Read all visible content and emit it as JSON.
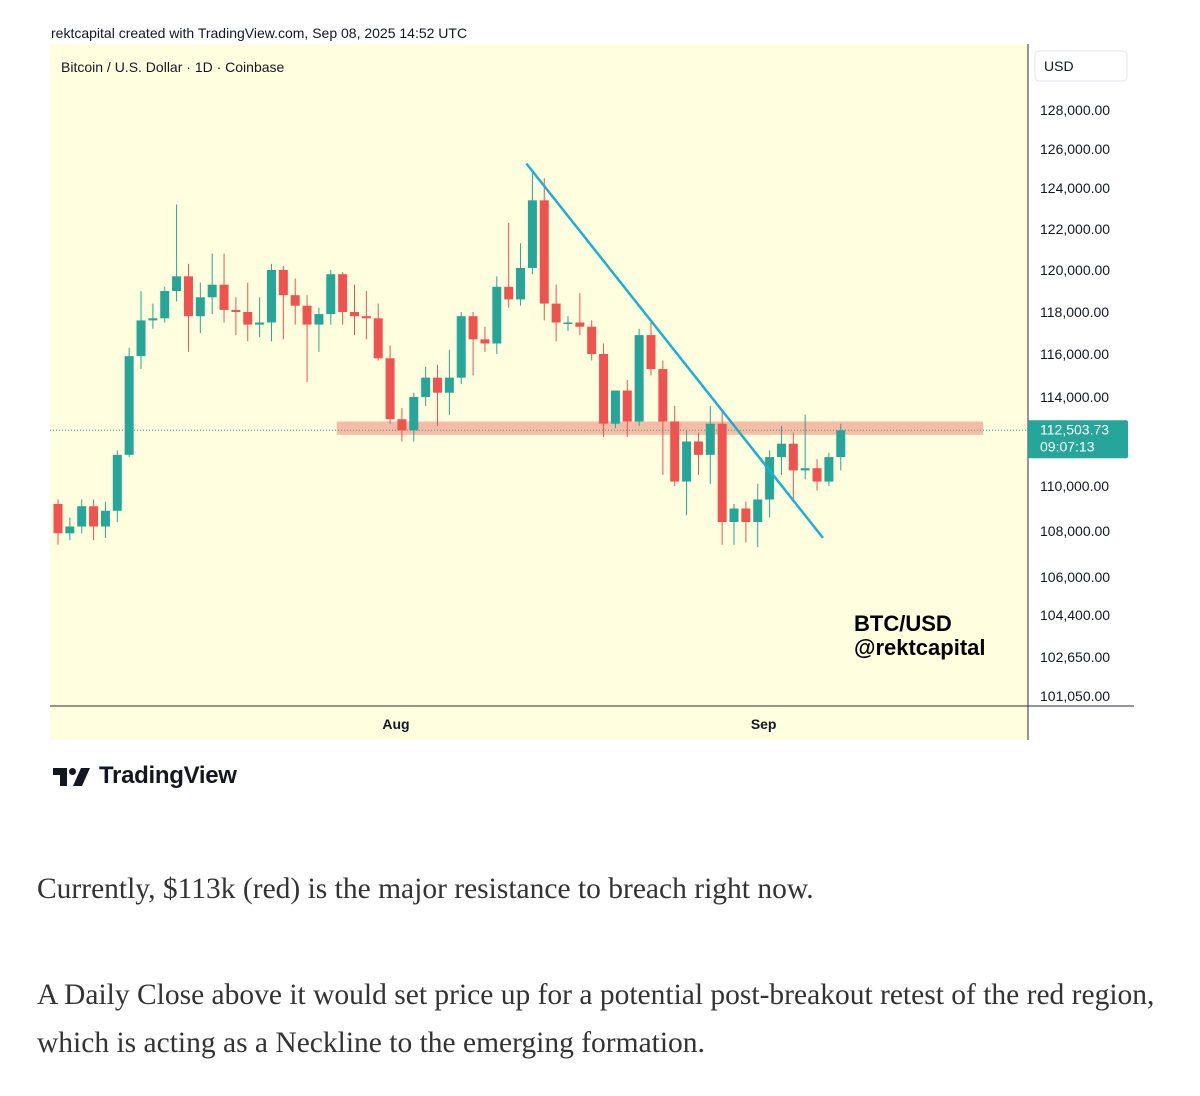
{
  "header": {
    "credit": "rektcapital created with TradingView.com, Sep 08, 2025 14:52 UTC"
  },
  "footer": {
    "brand": "TradingView"
  },
  "article": {
    "paragraph1": "Currently, $113k (red) is the major resistance to breach right now.",
    "paragraph2": "A Daily Close above it would set price up for a potential post-breakout retest of the red region, which is acting as a Neckline to the emerging formation."
  },
  "chart_data": {
    "type": "candlestick",
    "symbol_title": "Bitcoin / U.S. Dollar · 1D · Coinbase",
    "currency": "USD",
    "watermark": [
      "BTC/USD",
      "@rektcapital"
    ],
    "last_price": "112,503.73",
    "countdown": "09:07:13",
    "y_axis_labels": [
      {
        "value": 128000,
        "label": "128,000.00"
      },
      {
        "value": 126000,
        "label": "126,000.00"
      },
      {
        "value": 124000,
        "label": "124,000.00"
      },
      {
        "value": 122000,
        "label": "122,000.00"
      },
      {
        "value": 120000,
        "label": "120,000.00"
      },
      {
        "value": 118000,
        "label": "118,000.00"
      },
      {
        "value": 116000,
        "label": "116,000.00"
      },
      {
        "value": 114000,
        "label": "114,000.00"
      },
      {
        "value": 110000,
        "label": "110,000.00"
      },
      {
        "value": 108000,
        "label": "108,000.00"
      },
      {
        "value": 106000,
        "label": "106,000.00"
      },
      {
        "value": 104400,
        "label": "104,400.00"
      },
      {
        "value": 102650,
        "label": "102,650.00"
      },
      {
        "value": 101050,
        "label": "101,050.00"
      }
    ],
    "x_axis_labels": [
      {
        "label": "Aug",
        "index": 28.5
      },
      {
        "label": "Sep",
        "index": 59.5
      }
    ],
    "resistance_zone": {
      "low": 112300,
      "high": 112900,
      "from_index": 23.5,
      "to_index": 78,
      "color": "#f5b5a0"
    },
    "trendline": {
      "from": {
        "index": 39.5,
        "price": 125250
      },
      "to": {
        "index": 64.5,
        "price": 107700
      },
      "color": "#1ab0d4"
    },
    "colors": {
      "up": "#26a69a",
      "down": "#ef5350",
      "background": "#ffffe0"
    },
    "candles": [
      {
        "o": 109200,
        "h": 109400,
        "l": 107400,
        "c": 107900
      },
      {
        "o": 107900,
        "h": 108600,
        "l": 107600,
        "c": 108200
      },
      {
        "o": 108200,
        "h": 109400,
        "l": 107900,
        "c": 109100
      },
      {
        "o": 109100,
        "h": 109400,
        "l": 107600,
        "c": 108200
      },
      {
        "o": 108200,
        "h": 109300,
        "l": 107700,
        "c": 108900
      },
      {
        "o": 108900,
        "h": 111600,
        "l": 108400,
        "c": 111400
      },
      {
        "o": 111400,
        "h": 116300,
        "l": 111300,
        "c": 115900
      },
      {
        "o": 115900,
        "h": 119000,
        "l": 115300,
        "c": 117600
      },
      {
        "o": 117600,
        "h": 118400,
        "l": 117200,
        "c": 117700
      },
      {
        "o": 117700,
        "h": 119200,
        "l": 117500,
        "c": 119000
      },
      {
        "o": 119000,
        "h": 123200,
        "l": 118500,
        "c": 119700
      },
      {
        "o": 119700,
        "h": 120300,
        "l": 116100,
        "c": 117800
      },
      {
        "o": 117800,
        "h": 119400,
        "l": 117000,
        "c": 118700
      },
      {
        "o": 118700,
        "h": 120800,
        "l": 117900,
        "c": 119300
      },
      {
        "o": 119300,
        "h": 120800,
        "l": 117500,
        "c": 118100
      },
      {
        "o": 118100,
        "h": 118700,
        "l": 116900,
        "c": 118000
      },
      {
        "o": 118000,
        "h": 119400,
        "l": 116600,
        "c": 117400
      },
      {
        "o": 117400,
        "h": 118700,
        "l": 116800,
        "c": 117500
      },
      {
        "o": 117500,
        "h": 120300,
        "l": 116600,
        "c": 120000
      },
      {
        "o": 120000,
        "h": 120200,
        "l": 116700,
        "c": 118800
      },
      {
        "o": 118800,
        "h": 119600,
        "l": 117400,
        "c": 118300
      },
      {
        "o": 118300,
        "h": 118800,
        "l": 114700,
        "c": 117400
      },
      {
        "o": 117400,
        "h": 118200,
        "l": 116100,
        "c": 117900
      },
      {
        "o": 117900,
        "h": 120000,
        "l": 117400,
        "c": 119800
      },
      {
        "o": 119800,
        "h": 119900,
        "l": 117400,
        "c": 118000
      },
      {
        "o": 118000,
        "h": 119300,
        "l": 116900,
        "c": 117800
      },
      {
        "o": 117800,
        "h": 119000,
        "l": 116700,
        "c": 117700
      },
      {
        "o": 117700,
        "h": 118400,
        "l": 115700,
        "c": 115800
      },
      {
        "o": 115800,
        "h": 116400,
        "l": 112800,
        "c": 113000
      },
      {
        "o": 113000,
        "h": 113500,
        "l": 112000,
        "c": 112500
      },
      {
        "o": 112500,
        "h": 114200,
        "l": 112000,
        "c": 114000
      },
      {
        "o": 114000,
        "h": 115400,
        "l": 113600,
        "c": 114900
      },
      {
        "o": 114900,
        "h": 115500,
        "l": 112700,
        "c": 114200
      },
      {
        "o": 114200,
        "h": 116200,
        "l": 113200,
        "c": 114900
      },
      {
        "o": 114900,
        "h": 118000,
        "l": 114600,
        "c": 117800
      },
      {
        "o": 117800,
        "h": 118000,
        "l": 115000,
        "c": 116700
      },
      {
        "o": 116700,
        "h": 117300,
        "l": 116100,
        "c": 116500
      },
      {
        "o": 116500,
        "h": 119700,
        "l": 116000,
        "c": 119200
      },
      {
        "o": 119200,
        "h": 122300,
        "l": 118200,
        "c": 118600
      },
      {
        "o": 118600,
        "h": 121300,
        "l": 118300,
        "c": 120100
      },
      {
        "o": 120100,
        "h": 124800,
        "l": 119800,
        "c": 123400
      },
      {
        "o": 123400,
        "h": 124500,
        "l": 117600,
        "c": 118400
      },
      {
        "o": 118400,
        "h": 119300,
        "l": 116600,
        "c": 117500
      },
      {
        "o": 117500,
        "h": 117800,
        "l": 117100,
        "c": 117500
      },
      {
        "o": 117500,
        "h": 118900,
        "l": 116900,
        "c": 117300
      },
      {
        "o": 117300,
        "h": 117600,
        "l": 115700,
        "c": 116000
      },
      {
        "o": 116000,
        "h": 116500,
        "l": 112200,
        "c": 112800
      },
      {
        "o": 112800,
        "h": 114300,
        "l": 112600,
        "c": 114300
      },
      {
        "o": 114300,
        "h": 114800,
        "l": 112200,
        "c": 112900
      },
      {
        "o": 112900,
        "h": 117200,
        "l": 112700,
        "c": 116900
      },
      {
        "o": 116900,
        "h": 117600,
        "l": 115000,
        "c": 115300
      },
      {
        "o": 115300,
        "h": 115700,
        "l": 110500,
        "c": 112900
      },
      {
        "o": 112900,
        "h": 113600,
        "l": 110000,
        "c": 110200
      },
      {
        "o": 110200,
        "h": 112500,
        "l": 108700,
        "c": 112000
      },
      {
        "o": 112000,
        "h": 112400,
        "l": 110500,
        "c": 111400
      },
      {
        "o": 111400,
        "h": 113600,
        "l": 110100,
        "c": 112800
      },
      {
        "o": 112800,
        "h": 113400,
        "l": 107400,
        "c": 108400
      },
      {
        "o": 108400,
        "h": 109200,
        "l": 107400,
        "c": 109000
      },
      {
        "o": 109000,
        "h": 109300,
        "l": 107500,
        "c": 108400
      },
      {
        "o": 108400,
        "h": 110100,
        "l": 107300,
        "c": 109400
      },
      {
        "o": 109400,
        "h": 111600,
        "l": 108600,
        "c": 111300
      },
      {
        "o": 111300,
        "h": 112700,
        "l": 110500,
        "c": 111900
      },
      {
        "o": 111900,
        "h": 112400,
        "l": 109300,
        "c": 110700
      },
      {
        "o": 110700,
        "h": 113200,
        "l": 110300,
        "c": 110800
      },
      {
        "o": 110800,
        "h": 111200,
        "l": 109800,
        "c": 110200
      },
      {
        "o": 110200,
        "h": 111500,
        "l": 110000,
        "c": 111300
      },
      {
        "o": 111300,
        "h": 112800,
        "l": 110700,
        "c": 112500
      }
    ]
  }
}
